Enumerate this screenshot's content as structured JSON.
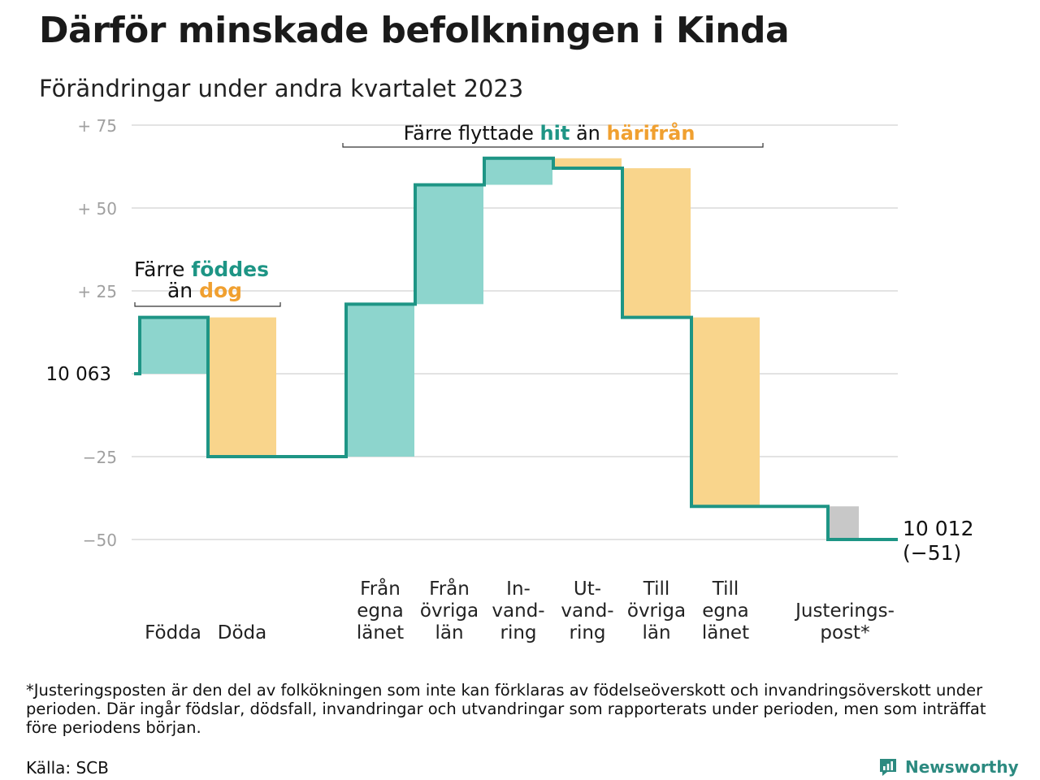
{
  "title": "Därför minskade befolkningen i Kinda",
  "subtitle": "Förändringar under andra kvartalet 2023",
  "chart_data": {
    "type": "waterfall",
    "ylim": [
      -55,
      78
    ],
    "yticks": [
      {
        "value": 75,
        "label": "+  75"
      },
      {
        "value": 50,
        "label": "+  50"
      },
      {
        "value": 25,
        "label": "+  25"
      },
      {
        "value": 0,
        "label": "10  063"
      },
      {
        "value": -25,
        "label": "−25"
      },
      {
        "value": -50,
        "label": "−50"
      }
    ],
    "grid": true,
    "start_value": 10063,
    "steps": [
      {
        "label": [
          "Födda"
        ],
        "change": 17,
        "kind": "in"
      },
      {
        "label": [
          "Döda"
        ],
        "change": -42,
        "kind": "out"
      },
      {
        "label": [
          "Från",
          "egna",
          "länet"
        ],
        "change": 46,
        "kind": "in"
      },
      {
        "label": [
          "Från",
          "övriga",
          "län"
        ],
        "change": 36,
        "kind": "in"
      },
      {
        "label": [
          "In-",
          "vand-",
          "ring"
        ],
        "change": 8,
        "kind": "in"
      },
      {
        "label": [
          "Ut-",
          "vand-",
          "ring"
        ],
        "change": -3,
        "kind": "out"
      },
      {
        "label": [
          "Till",
          "övriga",
          "län"
        ],
        "change": -45,
        "kind": "out"
      },
      {
        "label": [
          "Till",
          "egna",
          "länet"
        ],
        "change": -57,
        "kind": "out"
      },
      {
        "label": [
          "Justerings-",
          "post*"
        ],
        "change": -10,
        "kind": "adjust"
      }
    ],
    "end_value_label": "10 012",
    "end_change_label": "(−51)",
    "annotations": {
      "births": {
        "prefix": "Färre ",
        "highlight_in": "föddes",
        "line2_prefix": "än ",
        "highlight_out": "dog"
      },
      "moves": {
        "prefix": "Färre flyttade ",
        "highlight_in": "hit",
        "middle": " än ",
        "highlight_out": "härifrån"
      }
    },
    "colors": {
      "in": "#8dd5cd",
      "out": "#f9d58c",
      "adjust": "#c8c8c8",
      "line": "#1e9585",
      "in_text": "#1e9585",
      "out_text": "#f0a030",
      "grid": "#e3e3e3",
      "tick": "#a0a0a0"
    }
  },
  "footnote": "*Justeringsposten är den del av folkökningen som inte kan förklaras av födelseöverskott och invandringsöverskott under perioden. Där ingår födslar, dödsfall, invandringar och utvandringar som rapporterats under perioden, men som inträffat före periodens början.",
  "source": "Källa: SCB",
  "brand": {
    "name": "Newsworthy",
    "icon": "newsworthy-logo-icon",
    "color": "#2c8a80"
  }
}
